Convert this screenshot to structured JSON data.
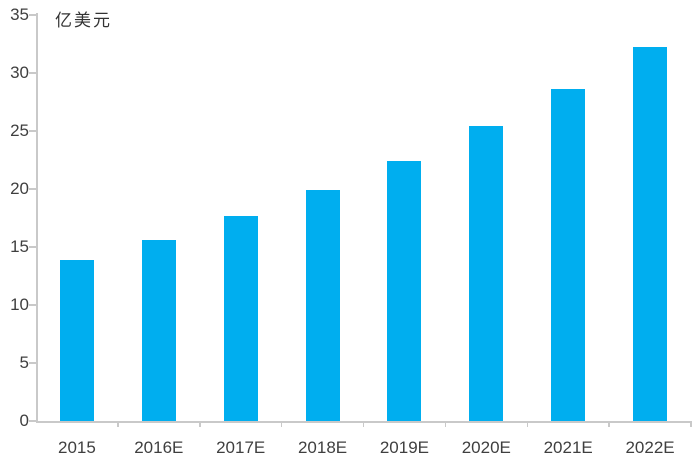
{
  "chart_data": {
    "type": "bar",
    "title": "",
    "xlabel": "",
    "ylabel": "亿美元",
    "categories": [
      "2015",
      "2016E",
      "2017E",
      "2018E",
      "2019E",
      "2020E",
      "2021E",
      "2022E"
    ],
    "values": [
      13.9,
      15.6,
      17.7,
      19.9,
      22.4,
      25.4,
      28.6,
      32.2
    ],
    "ylim": [
      0,
      35
    ],
    "ytick_step": 5,
    "ytick_labels": [
      "0",
      "5",
      "10",
      "15",
      "20",
      "25",
      "30",
      "35"
    ],
    "grid": false,
    "legend_position": "none",
    "bar_color": "#00aeef",
    "axis_color": "#c9c9c9",
    "label_color": "#3f3f3f"
  }
}
